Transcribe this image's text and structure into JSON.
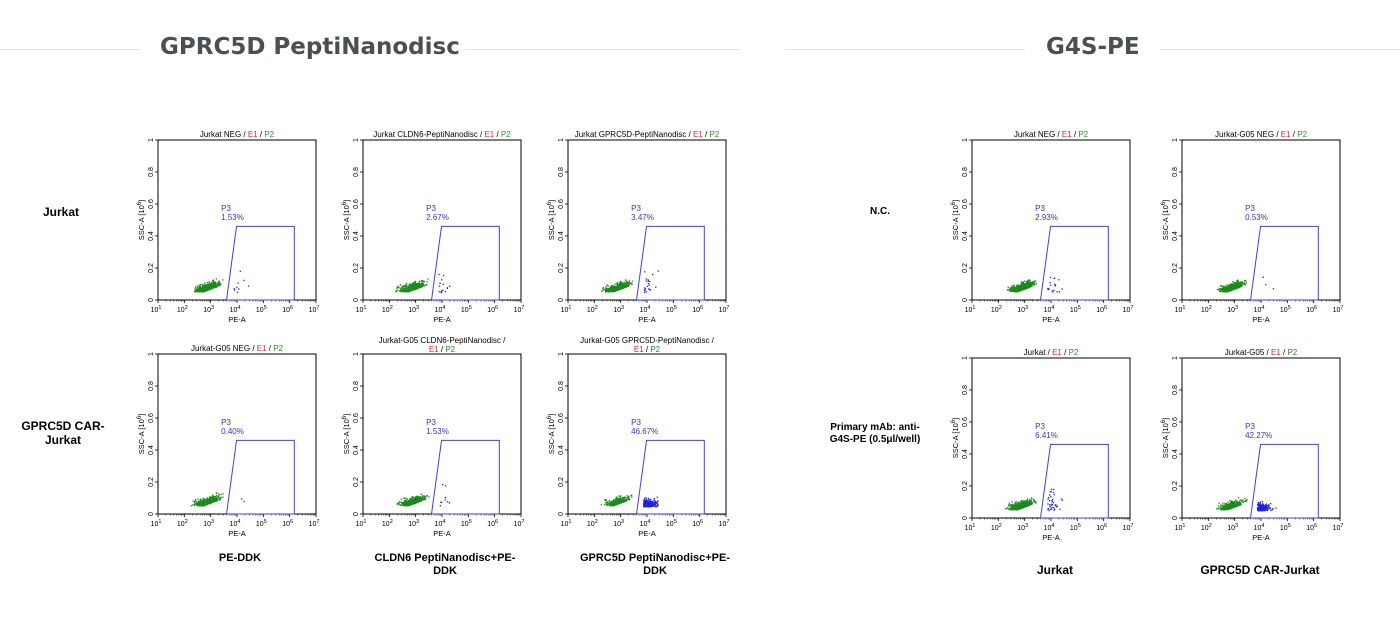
{
  "left_section": {
    "title": "GPRC5D PeptiNanodisc",
    "row_labels": [
      "Jurkat",
      "GPRC5D CAR-\nJurkat"
    ],
    "col_labels": [
      "PE-DDK",
      "CLDN6 PeptiNanodisc+PE-\nDDK",
      "GPRC5D PeptiNanodisc+PE-\nDDK"
    ]
  },
  "right_section": {
    "title": "G4S-PE",
    "row_labels": [
      "N.C.",
      "Primary mAb: anti-\nG4S-PE (0.5μl/well)"
    ],
    "col_labels": [
      "Jurkat",
      "GPRC5D CAR-Jurkat"
    ]
  },
  "colors": {
    "negative_events": "#1e8a1e",
    "gated_events": "#2020e0",
    "gate": "#4040e0",
    "title_red": "#e8262b",
    "title_green": "#2e8b2e"
  },
  "chart_data": [
    {
      "type": "scatter",
      "title": "Jurkat NEG",
      "title_parts": [
        "Jurkat NEG"
      ],
      "gate": "P3",
      "gate_value": "1.53%",
      "gate_percent": 1.53,
      "xlabel": "PE-A",
      "ylabel": "SSC-A [10",
      "ylabel_exp": "6",
      "xlim": [
        10,
        10000000
      ],
      "ylim": [
        0,
        1
      ],
      "x_tick_bases": [
        "10",
        "10",
        "10",
        "10",
        "10",
        "10",
        "10"
      ],
      "x_tick_exps": [
        "1",
        "2",
        "3",
        "4",
        "5",
        "6",
        "7"
      ],
      "y_ticks": [
        "0",
        "0.2",
        "0.4",
        "0.6",
        "0.8",
        "1"
      ],
      "legend": [
        "E1",
        "P2"
      ]
    },
    {
      "type": "scatter",
      "title": "Jurkat CLDN6-PeptiNanodisc",
      "title_parts": [
        "Jurkat CLDN6-PeptiNanodisc"
      ],
      "gate": "P3",
      "gate_value": "2.67%",
      "gate_percent": 2.67,
      "xlabel": "PE-A",
      "ylabel": "SSC-A [10",
      "ylabel_exp": "6",
      "xlim": [
        10,
        10000000
      ],
      "ylim": [
        0,
        1
      ],
      "x_tick_bases": [
        "10",
        "10",
        "10",
        "10",
        "10",
        "10",
        "10"
      ],
      "x_tick_exps": [
        "1",
        "2",
        "3",
        "4",
        "5",
        "6",
        "7"
      ],
      "y_ticks": [
        "0",
        "0.2",
        "0.4",
        "0.6",
        "0.8",
        "1"
      ],
      "legend": [
        "E1",
        "P2"
      ]
    },
    {
      "type": "scatter",
      "title": "Jurkat GPRC5D-PeptiNanodisc",
      "title_parts": [
        "Jurkat GPRC5D-PeptiNanodisc"
      ],
      "gate": "P3",
      "gate_value": "3.47%",
      "gate_percent": 3.47,
      "xlabel": "PE-A",
      "ylabel": "SSC-A [10",
      "ylabel_exp": "6",
      "xlim": [
        10,
        10000000
      ],
      "ylim": [
        0,
        1
      ],
      "x_tick_bases": [
        "10",
        "10",
        "10",
        "10",
        "10",
        "10",
        "10"
      ],
      "x_tick_exps": [
        "1",
        "2",
        "3",
        "4",
        "5",
        "6",
        "7"
      ],
      "y_ticks": [
        "0",
        "0.2",
        "0.4",
        "0.6",
        "0.8",
        "1"
      ],
      "legend": [
        "E1",
        "P2"
      ]
    },
    {
      "type": "scatter",
      "title": "Jurkat-G05 NEG",
      "title_parts": [
        "Jurkat-G05 NEG"
      ],
      "gate": "P3",
      "gate_value": "0.40%",
      "gate_percent": 0.4,
      "xlabel": "PE-A",
      "ylabel": "SSC-A [10",
      "ylabel_exp": "6",
      "xlim": [
        10,
        10000000
      ],
      "ylim": [
        0,
        1
      ],
      "x_tick_bases": [
        "10",
        "10",
        "10",
        "10",
        "10",
        "10",
        "10"
      ],
      "x_tick_exps": [
        "1",
        "2",
        "3",
        "4",
        "5",
        "6",
        "7"
      ],
      "y_ticks": [
        "0",
        "0.2",
        "0.4",
        "0.6",
        "0.8",
        "1"
      ],
      "legend": [
        "E1",
        "P2"
      ]
    },
    {
      "type": "scatter",
      "title": "Jurkat-G05 CLDN6-PeptiNanodisc / E1 / P2",
      "title_parts": [
        "Jurkat-G05 CLDN6-PeptiNanodisc /"
      ],
      "gate": "P3",
      "gate_value": "1.53%",
      "gate_percent": 1.53,
      "xlabel": "PE-A",
      "ylabel": "SSC-A [10",
      "ylabel_exp": "6",
      "xlim": [
        10,
        10000000
      ],
      "ylim": [
        0,
        1
      ],
      "x_tick_bases": [
        "10",
        "10",
        "10",
        "10",
        "10",
        "10",
        "10"
      ],
      "x_tick_exps": [
        "1",
        "2",
        "3",
        "4",
        "5",
        "6",
        "7"
      ],
      "y_ticks": [
        "0",
        "0.2",
        "0.4",
        "0.6",
        "0.8",
        "1"
      ],
      "legend": [
        "E1",
        "P2"
      ]
    },
    {
      "type": "scatter",
      "title": "Jurkat-G05 GPRC5D-PeptiNanodisc / E1 / P2",
      "title_parts": [
        "Jurkat-G05 GPRC5D-PeptiNanodisc /"
      ],
      "gate": "P3",
      "gate_value": "46.67%",
      "gate_percent": 46.67,
      "xlabel": "PE-A",
      "ylabel": "SSC-A [10",
      "ylabel_exp": "6",
      "xlim": [
        10,
        10000000
      ],
      "ylim": [
        0,
        1
      ],
      "x_tick_bases": [
        "10",
        "10",
        "10",
        "10",
        "10",
        "10",
        "10"
      ],
      "x_tick_exps": [
        "1",
        "2",
        "3",
        "4",
        "5",
        "6",
        "7"
      ],
      "y_ticks": [
        "0",
        "0.2",
        "0.4",
        "0.6",
        "0.8",
        "1"
      ],
      "legend": [
        "E1",
        "P2"
      ]
    },
    {
      "type": "scatter",
      "title": "Jurkat NEG",
      "title_parts": [
        "Jurkat NEG"
      ],
      "gate": "P3",
      "gate_value": "2.93%",
      "gate_percent": 2.93,
      "xlabel": "PE-A",
      "ylabel": "SSC-A [10",
      "ylabel_exp": "6",
      "xlim": [
        10,
        10000000
      ],
      "ylim": [
        0,
        1
      ],
      "x_tick_bases": [
        "10",
        "10",
        "10",
        "10",
        "10",
        "10",
        "10"
      ],
      "x_tick_exps": [
        "1",
        "2",
        "3",
        "4",
        "5",
        "6",
        "7"
      ],
      "y_ticks": [
        "0",
        "0.2",
        "0.4",
        "0.6",
        "0.8",
        "1"
      ],
      "legend": [
        "E1",
        "P2"
      ]
    },
    {
      "type": "scatter",
      "title": "Jurkat-G05 NEG",
      "title_parts": [
        "Jurkat-G05 NEG"
      ],
      "gate": "P3",
      "gate_value": "0.53%",
      "gate_percent": 0.53,
      "xlabel": "PE-A",
      "ylabel": "SSC-A [10",
      "ylabel_exp": "6",
      "xlim": [
        10,
        10000000
      ],
      "ylim": [
        0,
        1
      ],
      "x_tick_bases": [
        "10",
        "10",
        "10",
        "10",
        "10",
        "10",
        "10"
      ],
      "x_tick_exps": [
        "1",
        "2",
        "3",
        "4",
        "5",
        "6",
        "7"
      ],
      "y_ticks": [
        "0",
        "0.2",
        "0.4",
        "0.6",
        "0.8",
        "1"
      ],
      "legend": [
        "E1",
        "P2"
      ]
    },
    {
      "type": "scatter",
      "title": "Jurkat",
      "title_parts": [
        "Jurkat"
      ],
      "gate": "P3",
      "gate_value": "6.41%",
      "gate_percent": 6.41,
      "xlabel": "PE-A",
      "ylabel": "SSC-A [10",
      "ylabel_exp": "6",
      "xlim": [
        10,
        10000000
      ],
      "ylim": [
        0,
        1
      ],
      "x_tick_bases": [
        "10",
        "10",
        "10",
        "10",
        "10",
        "10",
        "10"
      ],
      "x_tick_exps": [
        "1",
        "2",
        "3",
        "4",
        "5",
        "6",
        "7"
      ],
      "y_ticks": [
        "0",
        "0.2",
        "0.4",
        "0.6",
        "0.8",
        "1"
      ],
      "legend": [
        "E1",
        "P2"
      ]
    },
    {
      "type": "scatter",
      "title": "Jurkat-G05",
      "title_parts": [
        "Jurkat-G05"
      ],
      "gate": "P3",
      "gate_value": "42.27%",
      "gate_percent": 42.27,
      "xlabel": "PE-A",
      "ylabel": "SSC-A [10",
      "ylabel_exp": "6",
      "xlim": [
        10,
        10000000
      ],
      "ylim": [
        0,
        1
      ],
      "x_tick_bases": [
        "10",
        "10",
        "10",
        "10",
        "10",
        "10",
        "10"
      ],
      "x_tick_exps": [
        "1",
        "2",
        "3",
        "4",
        "5",
        "6",
        "7"
      ],
      "y_ticks": [
        "0",
        "0.2",
        "0.4",
        "0.6",
        "0.8",
        "1"
      ],
      "legend": [
        "E1",
        "P2"
      ]
    }
  ]
}
